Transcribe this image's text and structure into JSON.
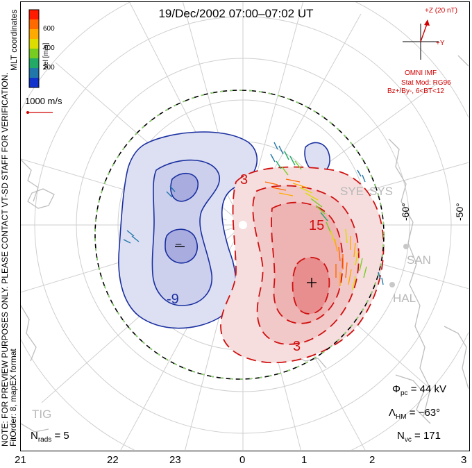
{
  "title": "19/Dec/2002 07:00–07:02 UT",
  "side_notes": {
    "mlt": "MLT coordinates",
    "preview": "NOTE: FOR PREVIEW PURPOSES ONLY. PLEASE CONTACT VT-SD STAFF FOR VERIFICATION.",
    "fit": "FitOrder: 8, mapEX format"
  },
  "colorbar": {
    "label": "Vel [m/s]",
    "ticks": [
      "600",
      "400",
      "200"
    ],
    "colors": [
      "#ff1a00",
      "#ff6a00",
      "#ffaa00",
      "#dddd00",
      "#77cc22",
      "#22aa66",
      "#2277aa",
      "#1133cc"
    ]
  },
  "scale_vector": {
    "label": "1000 m/s"
  },
  "imf": {
    "z_label": "+Z (20 nT)",
    "y_label": "+Y",
    "source": "OMNI IMF",
    "model": "Stat Mod: RG96",
    "condition": "Bz+/By-, 6<BT<12",
    "color": "#d00000"
  },
  "stations": [
    "SYE",
    "SYS",
    "SAN",
    "HAL",
    "TIG"
  ],
  "lat_labels": [
    "-60°",
    "-50°"
  ],
  "contours": {
    "neg_labels": [
      "-9",
      "–"
    ],
    "pos_labels": [
      "3",
      "15",
      "3",
      "+"
    ],
    "neg_color": "#1a2fa0",
    "pos_color": "#d01010"
  },
  "stats": {
    "phi_pc": {
      "sym": "Φ",
      "sub": "pc",
      "value": "= 44 kV"
    },
    "lambda_hm": {
      "sym": "Λ",
      "sub": "HM",
      "value": "= −63°"
    },
    "n_vc": {
      "sym": "N",
      "sub": "vc",
      "value": "= 171"
    },
    "n_rads": {
      "sym": "N",
      "sub": "rads",
      "value": "= 5"
    }
  },
  "mlt_axis": [
    "21",
    "22",
    "23",
    "0",
    "1",
    "2",
    "3"
  ]
}
